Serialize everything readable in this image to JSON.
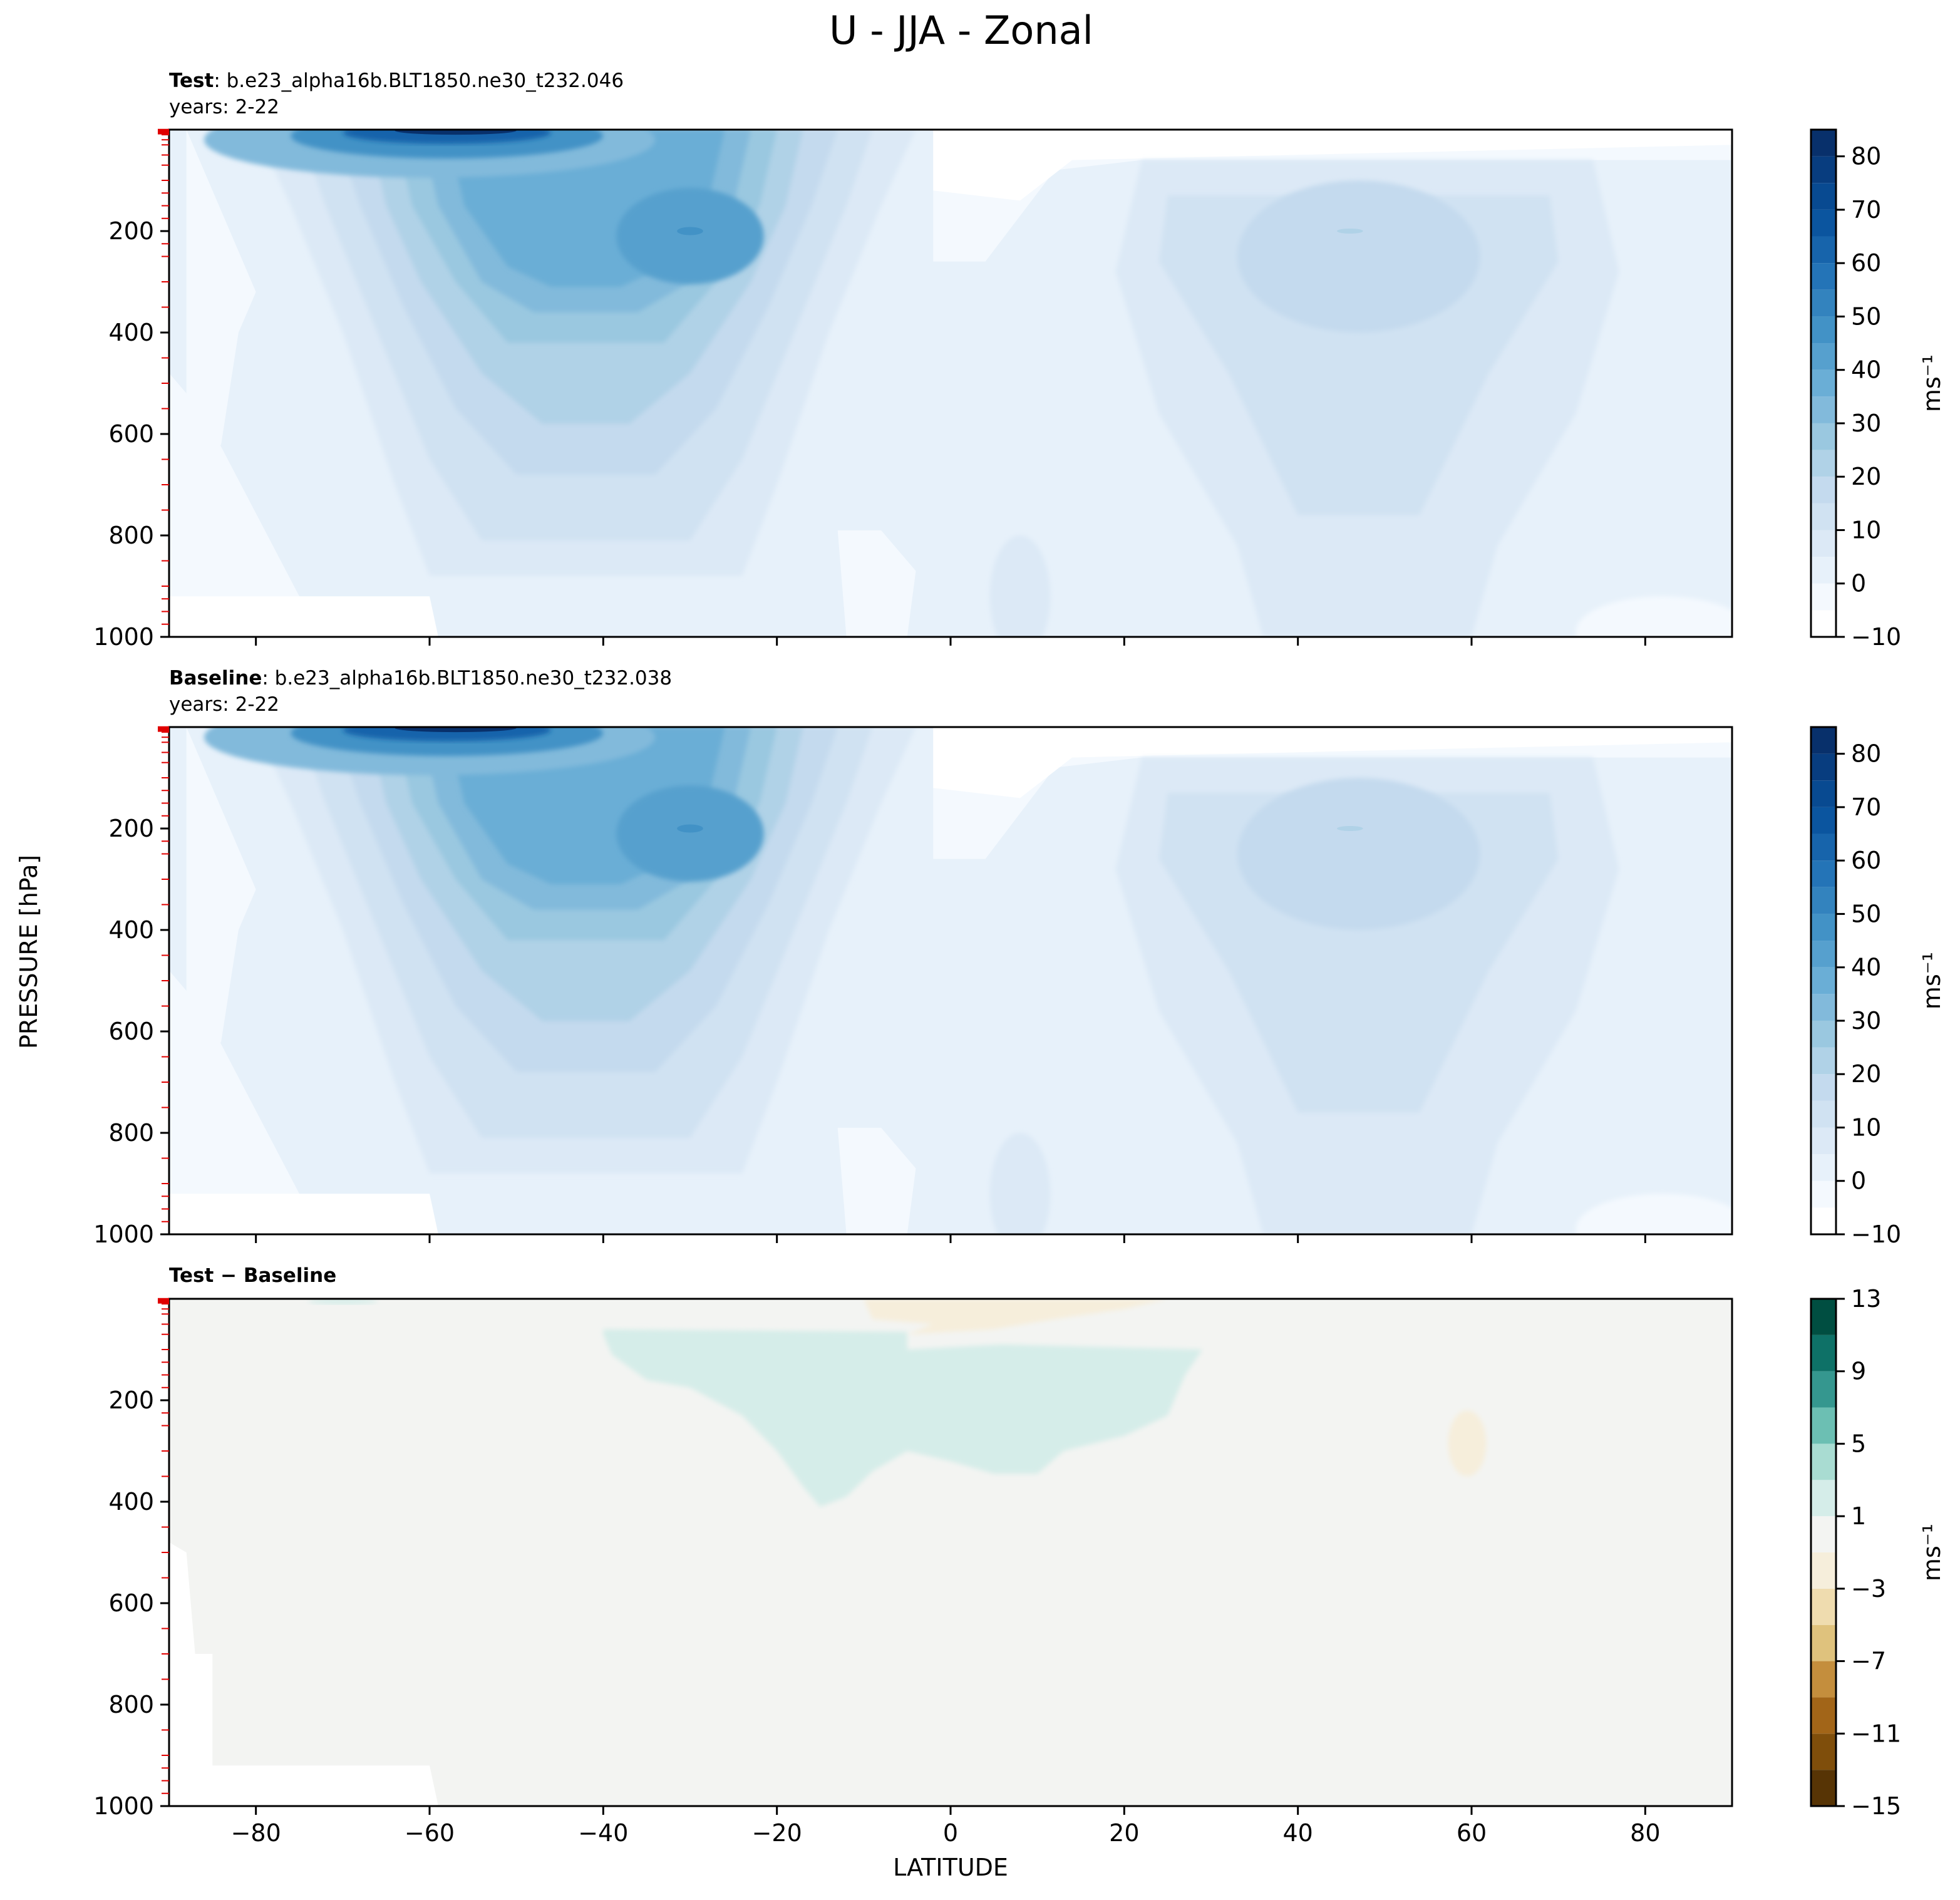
{
  "figure": {
    "title": "U - JJA - Zonal",
    "xlabel": "LATITUDE",
    "ylabel": "PRESSURE [hPa]"
  },
  "panels": [
    {
      "role": "test",
      "label_bold": "Test",
      "label_rest": ": b.e23_alpha16b.BLT1850.ne30_t232.046",
      "years": "years: 2-22",
      "unit": "ms⁻¹"
    },
    {
      "role": "baseline",
      "label_bold": "Baseline",
      "label_rest": ": b.e23_alpha16b.BLT1850.ne30_t232.038",
      "years": "years: 2-22",
      "unit": "ms⁻¹"
    },
    {
      "role": "diff",
      "label_bold": "Test − Baseline",
      "label_rest": "",
      "years": "",
      "unit": "ms⁻¹"
    }
  ],
  "chart_data": [
    {
      "type": "heatmap",
      "title": "Test : b.e23_alpha16b.BLT1850.ne30_t232.046",
      "xlabel": "LATITUDE",
      "ylabel": "PRESSURE [hPa]",
      "xlim": [
        -90,
        90
      ],
      "ylim": [
        1000,
        0
      ],
      "xticks": [
        -80,
        -60,
        -40,
        -20,
        0,
        20,
        40,
        60,
        80
      ],
      "yticks": [
        200,
        400,
        600,
        800,
        1000
      ],
      "colorbar_ticks": [
        -10,
        0,
        10,
        20,
        30,
        40,
        50,
        60,
        70,
        80
      ],
      "colorbar_levels": [
        -10,
        -5,
        0,
        5,
        10,
        15,
        20,
        25,
        30,
        35,
        40,
        45,
        50,
        55,
        60,
        65,
        70,
        75,
        80,
        85
      ],
      "colormap": "Blues",
      "colorbar_label": "ms⁻¹",
      "features": [
        {
          "lat": -60,
          "p": 10,
          "value": 85
        },
        {
          "lat": -30,
          "p": 200,
          "value": 50
        },
        {
          "lat": 45,
          "p": 200,
          "value": 30
        },
        {
          "lat": 5,
          "p": 150,
          "value": -5
        }
      ]
    },
    {
      "type": "heatmap",
      "title": "Baseline : b.e23_alpha16b.BLT1850.ne30_t232.038",
      "xlabel": "LATITUDE",
      "ylabel": "PRESSURE [hPa]",
      "xlim": [
        -90,
        90
      ],
      "ylim": [
        1000,
        0
      ],
      "xticks": [
        -80,
        -60,
        -40,
        -20,
        0,
        20,
        40,
        60,
        80
      ],
      "yticks": [
        200,
        400,
        600,
        800,
        1000
      ],
      "colorbar_ticks": [
        -10,
        0,
        10,
        20,
        30,
        40,
        50,
        60,
        70,
        80
      ],
      "colorbar_levels": [
        -10,
        -5,
        0,
        5,
        10,
        15,
        20,
        25,
        30,
        35,
        40,
        45,
        50,
        55,
        60,
        65,
        70,
        75,
        80,
        85
      ],
      "colormap": "Blues",
      "colorbar_label": "ms⁻¹",
      "features": [
        {
          "lat": -60,
          "p": 10,
          "value": 85
        },
        {
          "lat": -30,
          "p": 200,
          "value": 48
        },
        {
          "lat": 46,
          "p": 200,
          "value": 30
        },
        {
          "lat": 5,
          "p": 150,
          "value": -5
        }
      ]
    },
    {
      "type": "heatmap",
      "title": "Test − Baseline",
      "xlabel": "LATITUDE",
      "ylabel": "PRESSURE [hPa]",
      "xlim": [
        -90,
        90
      ],
      "ylim": [
        1000,
        0
      ],
      "xticks": [
        -80,
        -60,
        -40,
        -20,
        0,
        20,
        40,
        60,
        80
      ],
      "xtick_labels": [
        "−80",
        "−60",
        "−40",
        "−20",
        "0",
        "20",
        "40",
        "60",
        "80"
      ],
      "yticks": [
        200,
        400,
        600,
        800,
        1000
      ],
      "colorbar_ticks": [
        -15,
        -11,
        -7,
        -3,
        1,
        5,
        9,
        13
      ],
      "colorbar_tick_labels": [
        "−15",
        "−11",
        "−7",
        "−3",
        "1",
        "5",
        "9",
        "13"
      ],
      "colorbar_levels": [
        -15,
        -13,
        -11,
        -9,
        -7,
        -5,
        -3,
        -1,
        1,
        3,
        5,
        7,
        9,
        11,
        13
      ],
      "colormap": "BrBG",
      "colorbar_label": "ms⁻¹",
      "features": [
        {
          "lat": -5,
          "p": 200,
          "value": 2
        },
        {
          "lat": 60,
          "p": 280,
          "value": -2
        },
        {
          "lat": -2,
          "p": 30,
          "value": -2
        }
      ]
    }
  ],
  "colors": {
    "blues": [
      "#ffffff",
      "#f4f9fe",
      "#e7f1fa",
      "#dce9f6",
      "#d0e2f2",
      "#c4daee",
      "#b0d2e7",
      "#9ac8e0",
      "#82badb",
      "#6aaed6",
      "#56a0ce",
      "#4292c6",
      "#3383be",
      "#2474b7",
      "#1764ab",
      "#0b559f",
      "#084a91",
      "#083d7f",
      "#08306b"
    ],
    "diff": [
      "#573405",
      "#7f4e0b",
      "#a26518",
      "#c48e3d",
      "#dfc27d",
      "#efdcaf",
      "#f6eedb",
      "#f3f4f2",
      "#d5ede9",
      "#a9dcd2",
      "#6cbfb3",
      "#35978f",
      "#0e7167",
      "#004e41"
    ],
    "surface_mask": "#ffffff",
    "tick_red": "#e00000"
  }
}
